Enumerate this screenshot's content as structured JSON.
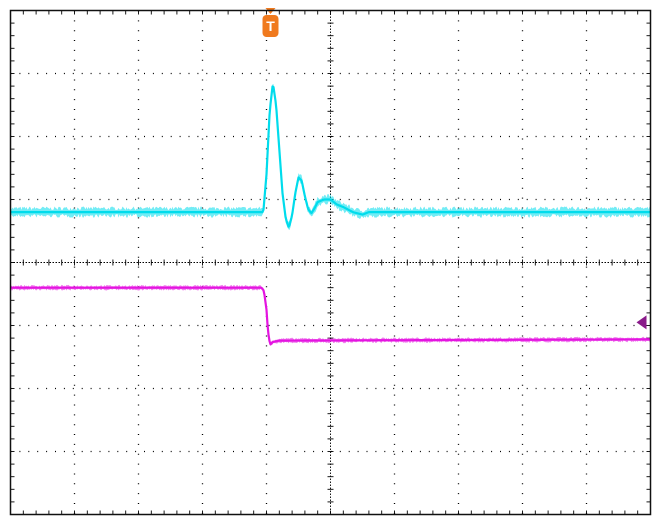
{
  "chart_data": {
    "type": "line",
    "title": "",
    "xlabel": "",
    "ylabel": "",
    "grid": true,
    "x_divisions": 10,
    "y_divisions": 8,
    "xlim": [
      0,
      10
    ],
    "ylim": [
      0,
      8
    ],
    "trigger_marker": {
      "label": "T",
      "x_div": 4.0,
      "color": "#f07a1e"
    },
    "level_marker": {
      "y_div": 3.05,
      "color": "#8a1a8a"
    },
    "series": [
      {
        "color": "#00dcec",
        "noise_div": 0.06,
        "x": [
          0,
          3.95,
          4.0,
          4.05,
          4.1,
          4.15,
          4.2,
          4.25,
          4.3,
          4.35,
          4.4,
          4.45,
          4.5,
          4.55,
          4.6,
          4.65,
          4.7,
          4.75,
          4.8,
          4.9,
          5.0,
          5.1,
          5.2,
          5.35,
          5.5,
          5.6,
          5.8,
          6.0,
          10
        ],
        "y": [
          4.8,
          4.8,
          5.4,
          6.4,
          6.85,
          6.5,
          5.8,
          5.1,
          4.7,
          4.55,
          4.75,
          5.1,
          5.35,
          5.3,
          5.05,
          4.85,
          4.78,
          4.86,
          4.96,
          5.0,
          5.0,
          4.92,
          4.88,
          4.8,
          4.76,
          4.8,
          4.8,
          4.8,
          4.8
        ]
      },
      {
        "color": "#e414e0",
        "noise_div": 0.03,
        "x": [
          0,
          3.92,
          3.96,
          4.0,
          4.02,
          4.04,
          4.06,
          4.1,
          4.2,
          10
        ],
        "y": [
          3.6,
          3.6,
          3.55,
          3.25,
          2.95,
          2.78,
          2.7,
          2.74,
          2.76,
          2.78
        ]
      }
    ]
  }
}
